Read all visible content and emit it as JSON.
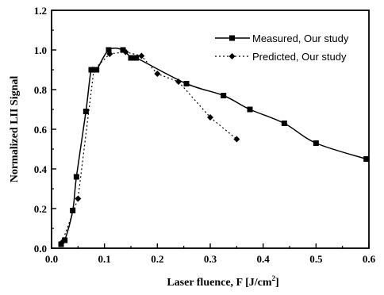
{
  "chart_data": {
    "type": "line",
    "xlabel": "Laser fluence, F [J/cm",
    "xlabel_sup": "2",
    "xlabel_end": "]",
    "ylabel": "Normalized LII Signal",
    "xlim": [
      0.0,
      0.6
    ],
    "ylim": [
      0.0,
      1.2
    ],
    "xticks": [
      "0.0",
      "0.1",
      "0.2",
      "0.3",
      "0.4",
      "0.5",
      "0.6"
    ],
    "yticks": [
      "0.0",
      "0.2",
      "0.4",
      "0.6",
      "0.8",
      "1.0",
      "1.2"
    ],
    "grid": false,
    "legend_position": "top-right",
    "series": [
      {
        "name": "Measured, Our study",
        "marker": "square",
        "line": "solid",
        "points": [
          {
            "x": 0.018,
            "y": 0.02
          },
          {
            "x": 0.025,
            "y": 0.04
          },
          {
            "x": 0.04,
            "y": 0.19
          },
          {
            "x": 0.047,
            "y": 0.36
          },
          {
            "x": 0.065,
            "y": 0.69
          },
          {
            "x": 0.075,
            "y": 0.9
          },
          {
            "x": 0.085,
            "y": 0.9
          },
          {
            "x": 0.108,
            "y": 1.0
          },
          {
            "x": 0.135,
            "y": 1.0
          },
          {
            "x": 0.15,
            "y": 0.96
          },
          {
            "x": 0.16,
            "y": 0.96
          },
          {
            "x": 0.255,
            "y": 0.83
          },
          {
            "x": 0.325,
            "y": 0.77
          },
          {
            "x": 0.375,
            "y": 0.7
          },
          {
            "x": 0.44,
            "y": 0.63
          },
          {
            "x": 0.5,
            "y": 0.53
          },
          {
            "x": 0.595,
            "y": 0.45
          }
        ]
      },
      {
        "name": "Predicted, Our study",
        "marker": "diamond",
        "line": "dotted",
        "points": [
          {
            "x": 0.02,
            "y": 0.03
          },
          {
            "x": 0.05,
            "y": 0.25
          },
          {
            "x": 0.08,
            "y": 0.9
          },
          {
            "x": 0.11,
            "y": 0.98
          },
          {
            "x": 0.14,
            "y": 0.99
          },
          {
            "x": 0.17,
            "y": 0.97
          },
          {
            "x": 0.2,
            "y": 0.88
          },
          {
            "x": 0.24,
            "y": 0.84
          },
          {
            "x": 0.3,
            "y": 0.66
          },
          {
            "x": 0.35,
            "y": 0.55
          }
        ]
      }
    ]
  }
}
